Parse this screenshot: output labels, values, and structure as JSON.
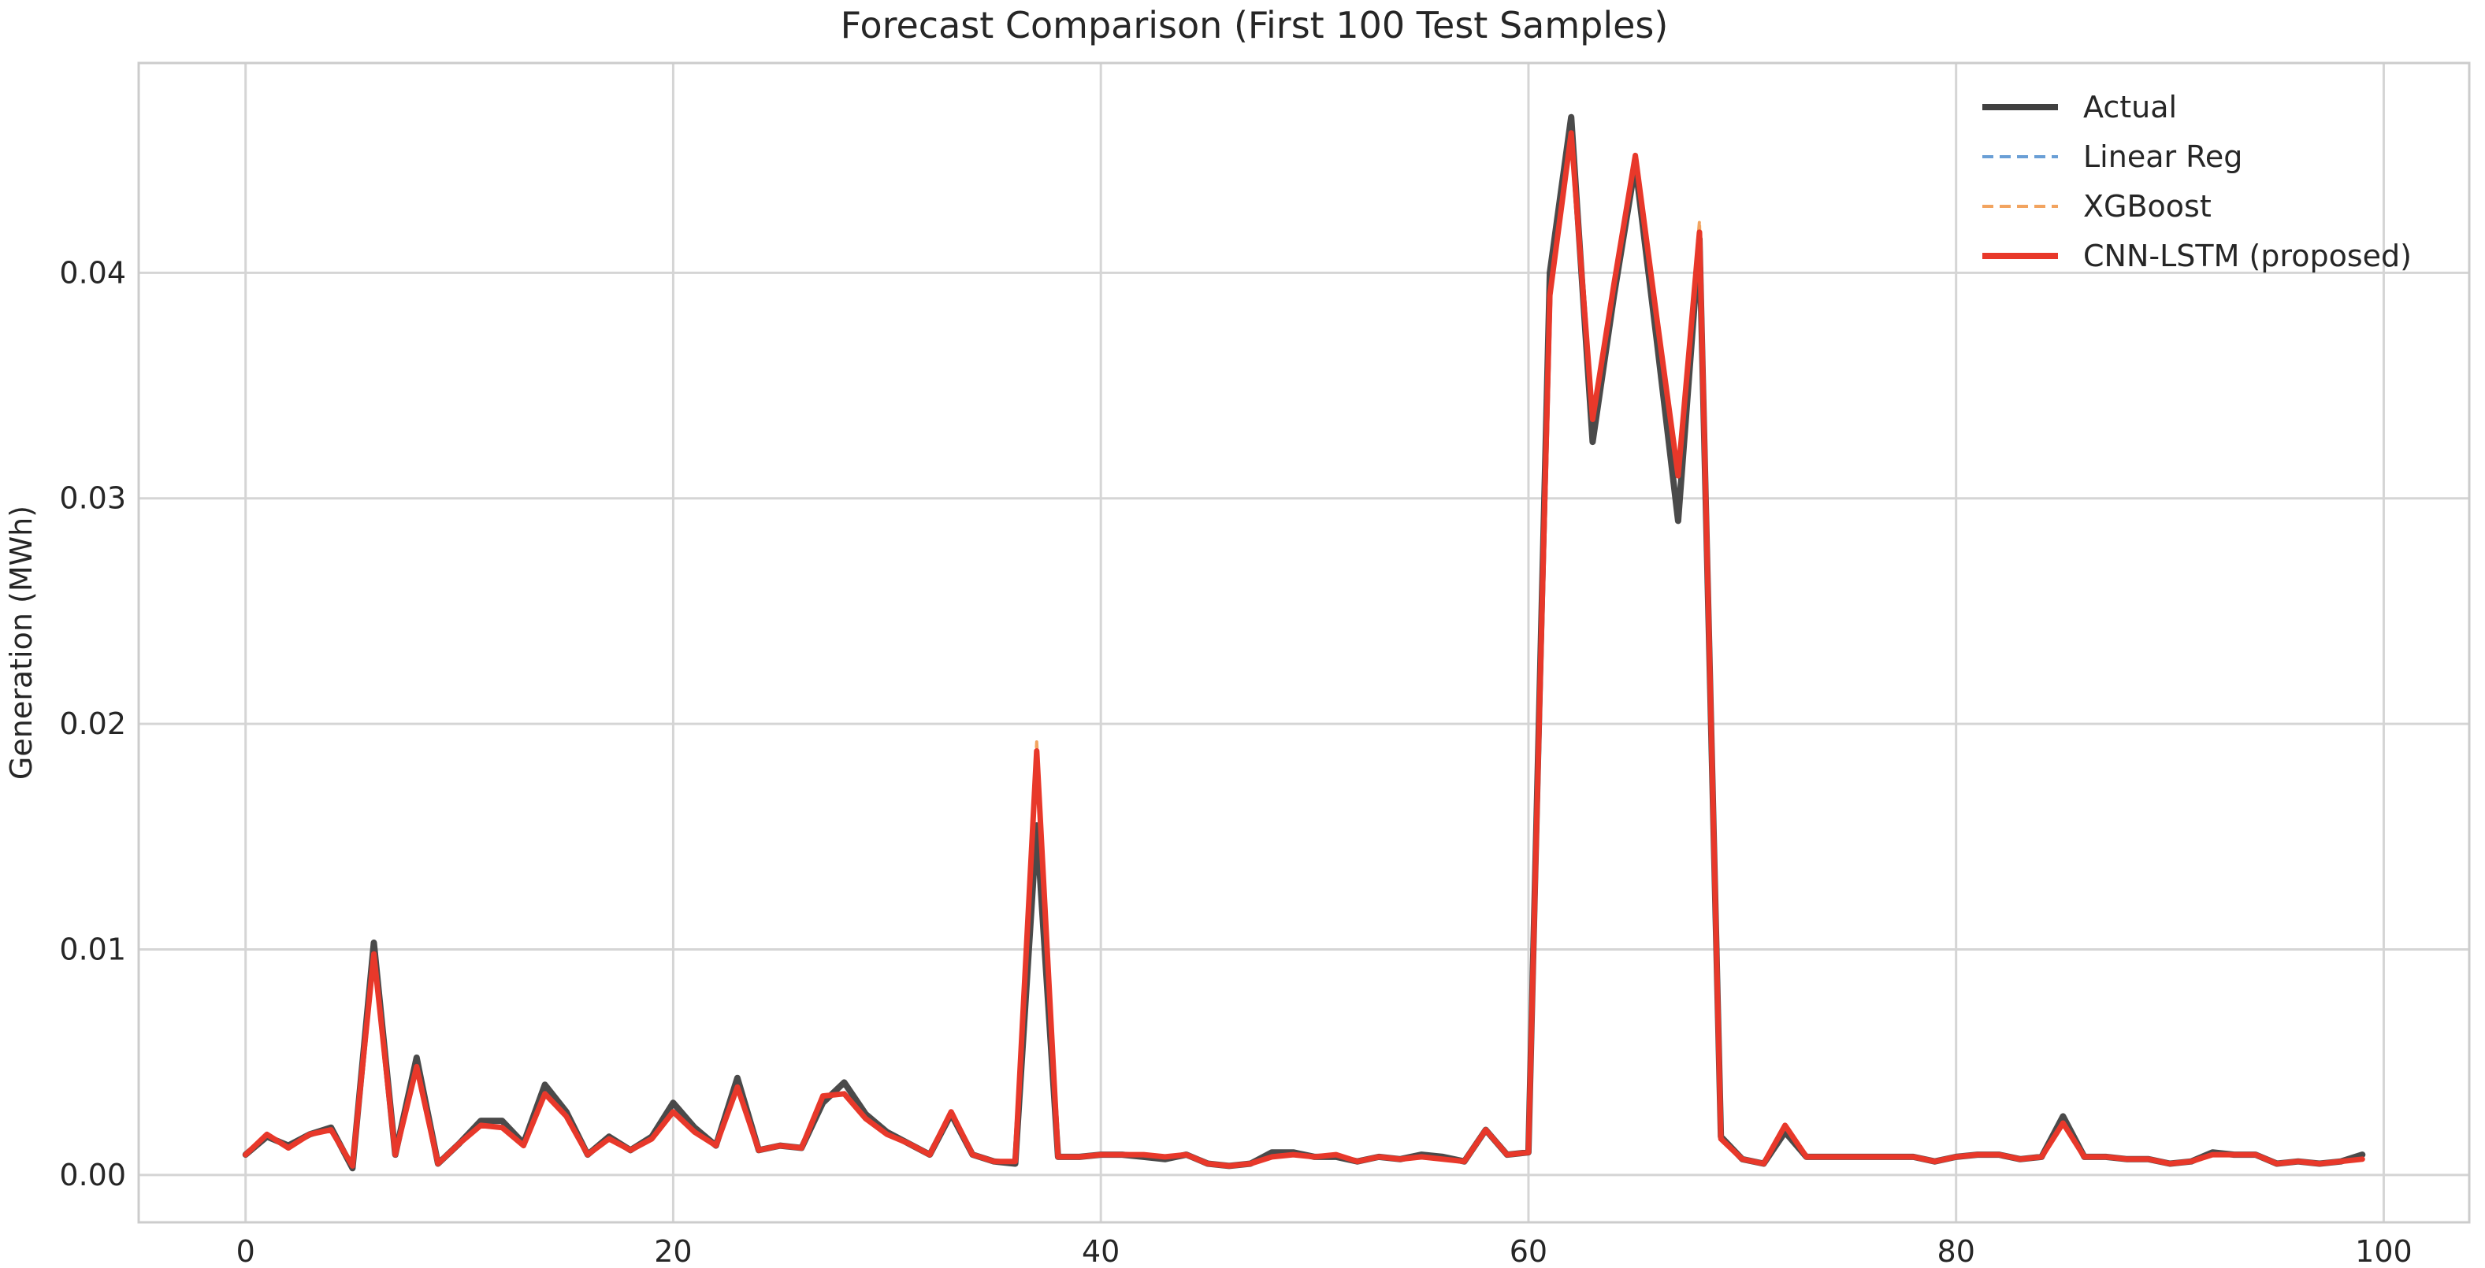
{
  "chart_data": {
    "type": "line",
    "title": "Forecast Comparison (First 100 Test Samples)",
    "xlabel": "",
    "ylabel": "Generation (MWh)",
    "xlim": [
      -5,
      104
    ],
    "ylim": [
      -0.0021,
      0.0493
    ],
    "xticks": [
      0,
      20,
      40,
      60,
      80,
      100
    ],
    "yticks": [
      0.0,
      0.01,
      0.02,
      0.03,
      0.04
    ],
    "ytick_labels": [
      "0.00",
      "0.01",
      "0.02",
      "0.03",
      "0.04"
    ],
    "grid": true,
    "legend_position": "top-right",
    "x": [
      0,
      1,
      2,
      3,
      4,
      5,
      6,
      7,
      8,
      9,
      10,
      11,
      12,
      13,
      14,
      15,
      16,
      17,
      18,
      19,
      20,
      21,
      22,
      23,
      24,
      25,
      26,
      27,
      28,
      29,
      30,
      31,
      32,
      33,
      34,
      35,
      36,
      37,
      38,
      39,
      40,
      41,
      42,
      43,
      44,
      45,
      46,
      47,
      48,
      49,
      50,
      51,
      52,
      53,
      54,
      55,
      56,
      57,
      58,
      59,
      60,
      61,
      62,
      63,
      64,
      65,
      66,
      67,
      68,
      69,
      70,
      71,
      72,
      73,
      74,
      75,
      76,
      77,
      78,
      79,
      80,
      81,
      82,
      83,
      84,
      85,
      86,
      87,
      88,
      89,
      90,
      91,
      92,
      93,
      94,
      95,
      96,
      97,
      98,
      99
    ],
    "series": [
      {
        "name": "Actual",
        "color": "#404040",
        "style": "solid",
        "values": [
          0.0009,
          0.0017,
          0.0013,
          0.0018,
          0.0021,
          0.0003,
          0.0103,
          0.0009,
          0.0052,
          0.0005,
          0.0014,
          0.0024,
          0.0024,
          0.0014,
          0.004,
          0.0028,
          0.0009,
          0.0017,
          0.0011,
          0.0017,
          0.0032,
          0.0021,
          0.0013,
          0.0043,
          0.0011,
          0.0013,
          0.0012,
          0.0032,
          0.0041,
          0.0027,
          0.0019,
          0.0014,
          0.0009,
          0.0027,
          0.0009,
          0.0006,
          0.0005,
          0.0155,
          0.0008,
          0.0008,
          0.0009,
          0.0009,
          0.0008,
          0.0007,
          0.0009,
          0.0005,
          0.0004,
          0.0005,
          0.001,
          0.001,
          0.0008,
          0.0008,
          0.0006,
          0.0008,
          0.0007,
          0.0009,
          0.0008,
          0.0006,
          0.002,
          0.0009,
          0.001,
          0.04,
          0.0469,
          0.0325,
          0.039,
          0.0448,
          0.037,
          0.029,
          0.0415,
          0.0017,
          0.0007,
          0.0005,
          0.0019,
          0.0008,
          0.0008,
          0.0008,
          0.0008,
          0.0008,
          0.0008,
          0.0006,
          0.0008,
          0.0009,
          0.0009,
          0.0007,
          0.0008,
          0.0026,
          0.0008,
          0.0008,
          0.0007,
          0.0007,
          0.0005,
          0.0006,
          0.001,
          0.0009,
          0.0009,
          0.0005,
          0.0006,
          0.0005,
          0.0006,
          0.0009
        ]
      },
      {
        "name": "Linear Reg",
        "color": "#6a9fd6",
        "style": "dashed",
        "values": [
          0.0009,
          0.0018,
          0.0012,
          0.0018,
          0.002,
          0.0004,
          0.0098,
          0.0009,
          0.0048,
          0.0005,
          0.0014,
          0.0022,
          0.0021,
          0.0013,
          0.0036,
          0.0026,
          0.0009,
          0.0016,
          0.0011,
          0.0016,
          0.0028,
          0.0019,
          0.0013,
          0.0039,
          0.0011,
          0.0013,
          0.0012,
          0.0035,
          0.0036,
          0.0025,
          0.0018,
          0.0014,
          0.0009,
          0.0028,
          0.0009,
          0.0006,
          0.0006,
          0.0188,
          0.0008,
          0.0008,
          0.0009,
          0.0009,
          0.0009,
          0.0008,
          0.0009,
          0.0005,
          0.0004,
          0.0005,
          0.0008,
          0.0009,
          0.0008,
          0.0009,
          0.0006,
          0.0008,
          0.0007,
          0.0008,
          0.0007,
          0.0006,
          0.002,
          0.0009,
          0.001,
          0.039,
          0.0462,
          0.0335,
          0.0395,
          0.0452,
          0.038,
          0.031,
          0.0418,
          0.0016,
          0.0007,
          0.0005,
          0.0022,
          0.0008,
          0.0008,
          0.0008,
          0.0008,
          0.0008,
          0.0008,
          0.0006,
          0.0008,
          0.0009,
          0.0009,
          0.0007,
          0.0008,
          0.0023,
          0.0008,
          0.0008,
          0.0007,
          0.0007,
          0.0005,
          0.0006,
          0.0009,
          0.0009,
          0.0009,
          0.0005,
          0.0006,
          0.0005,
          0.0006,
          0.0007
        ]
      },
      {
        "name": "XGBoost",
        "color": "#f2a460",
        "style": "dashed",
        "values": [
          0.0009,
          0.0018,
          0.0012,
          0.0018,
          0.002,
          0.0004,
          0.0098,
          0.0009,
          0.0048,
          0.0005,
          0.0014,
          0.0022,
          0.0021,
          0.0013,
          0.0036,
          0.0026,
          0.0009,
          0.0016,
          0.0011,
          0.0016,
          0.0028,
          0.0019,
          0.0013,
          0.0039,
          0.0011,
          0.0013,
          0.0012,
          0.0035,
          0.0036,
          0.0025,
          0.0018,
          0.0014,
          0.0009,
          0.0028,
          0.0009,
          0.0006,
          0.0006,
          0.0192,
          0.0008,
          0.0008,
          0.0009,
          0.0009,
          0.0009,
          0.0008,
          0.0009,
          0.0005,
          0.0004,
          0.0005,
          0.0008,
          0.0009,
          0.0008,
          0.0009,
          0.0006,
          0.0008,
          0.0007,
          0.0008,
          0.0007,
          0.0006,
          0.002,
          0.0009,
          0.001,
          0.039,
          0.0462,
          0.0335,
          0.0395,
          0.0452,
          0.038,
          0.031,
          0.0423,
          0.0016,
          0.0007,
          0.0005,
          0.0022,
          0.0008,
          0.0008,
          0.0008,
          0.0008,
          0.0008,
          0.0008,
          0.0006,
          0.0008,
          0.0009,
          0.0009,
          0.0007,
          0.0008,
          0.0023,
          0.0008,
          0.0008,
          0.0007,
          0.0007,
          0.0005,
          0.0006,
          0.0009,
          0.0009,
          0.0009,
          0.0005,
          0.0006,
          0.0005,
          0.0006,
          0.0007
        ]
      },
      {
        "name": "CNN-LSTM (proposed)",
        "color": "#e8382a",
        "style": "solid",
        "values": [
          0.0009,
          0.0018,
          0.0012,
          0.0018,
          0.002,
          0.0004,
          0.0098,
          0.0009,
          0.0048,
          0.0005,
          0.0014,
          0.0022,
          0.0021,
          0.0013,
          0.0036,
          0.0026,
          0.0009,
          0.0016,
          0.0011,
          0.0016,
          0.0028,
          0.0019,
          0.0013,
          0.0039,
          0.0011,
          0.0013,
          0.0012,
          0.0035,
          0.0036,
          0.0025,
          0.0018,
          0.0014,
          0.0009,
          0.0028,
          0.0009,
          0.0006,
          0.0006,
          0.0188,
          0.0008,
          0.0008,
          0.0009,
          0.0009,
          0.0009,
          0.0008,
          0.0009,
          0.0005,
          0.0004,
          0.0005,
          0.0008,
          0.0009,
          0.0008,
          0.0009,
          0.0006,
          0.0008,
          0.0007,
          0.0008,
          0.0007,
          0.0006,
          0.002,
          0.0009,
          0.001,
          0.039,
          0.0462,
          0.0335,
          0.0395,
          0.0452,
          0.038,
          0.031,
          0.0418,
          0.0016,
          0.0007,
          0.0005,
          0.0022,
          0.0008,
          0.0008,
          0.0008,
          0.0008,
          0.0008,
          0.0008,
          0.0006,
          0.0008,
          0.0009,
          0.0009,
          0.0007,
          0.0008,
          0.0023,
          0.0008,
          0.0008,
          0.0007,
          0.0007,
          0.0005,
          0.0006,
          0.0009,
          0.0009,
          0.0009,
          0.0005,
          0.0006,
          0.0005,
          0.0006,
          0.0007
        ]
      }
    ]
  }
}
